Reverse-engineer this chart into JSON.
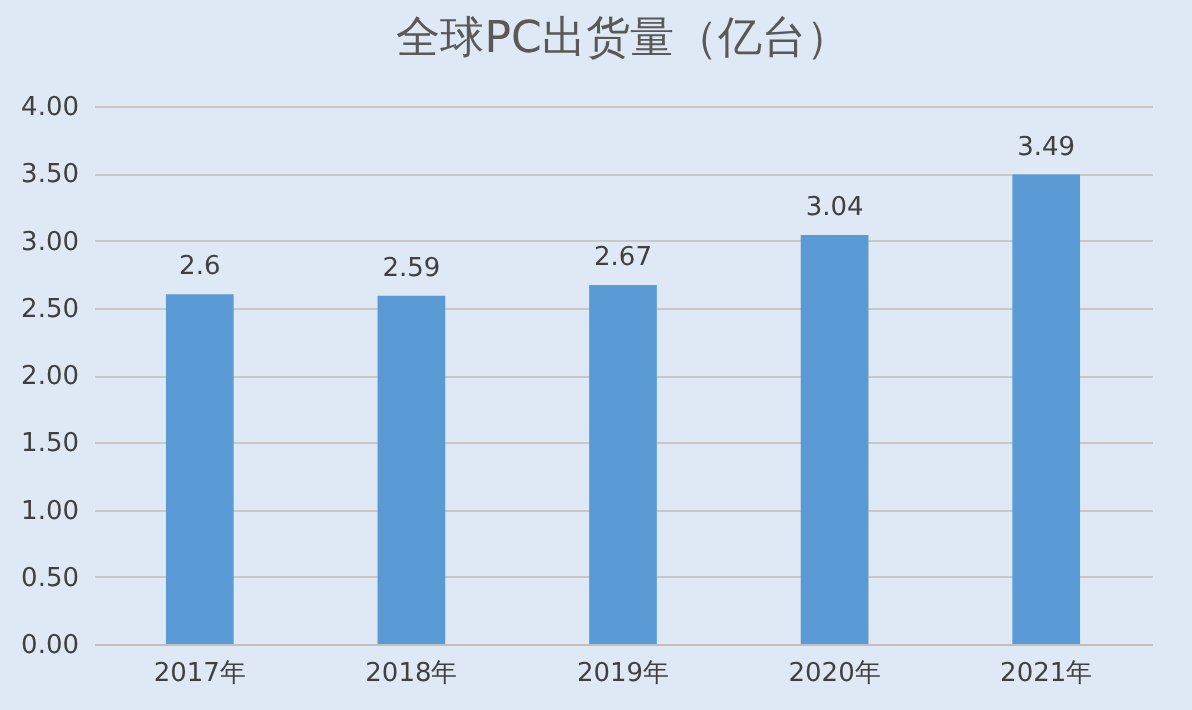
{
  "chart_data": {
    "type": "bar",
    "title": "全球PC出货量（亿台）",
    "categories": [
      "2017年",
      "2018年",
      "2019年",
      "2020年",
      "2021年"
    ],
    "values": [
      2.6,
      2.59,
      2.67,
      3.04,
      3.49
    ],
    "color": "#5b9bd5",
    "ylim": [
      0,
      4
    ],
    "yticks": [
      {
        "value": 0,
        "label": "0.00"
      },
      {
        "value": 0.5,
        "label": "0.50"
      },
      {
        "value": 1,
        "label": "1.00"
      },
      {
        "value": 1.5,
        "label": "1.50"
      },
      {
        "value": 2,
        "label": "2.00"
      },
      {
        "value": 2.5,
        "label": "2.50"
      },
      {
        "value": 3,
        "label": "3.00"
      },
      {
        "value": 3.5,
        "label": "3.50"
      },
      {
        "value": 4,
        "label": "4.00"
      }
    ],
    "grid": "y",
    "data_labels": true
  }
}
